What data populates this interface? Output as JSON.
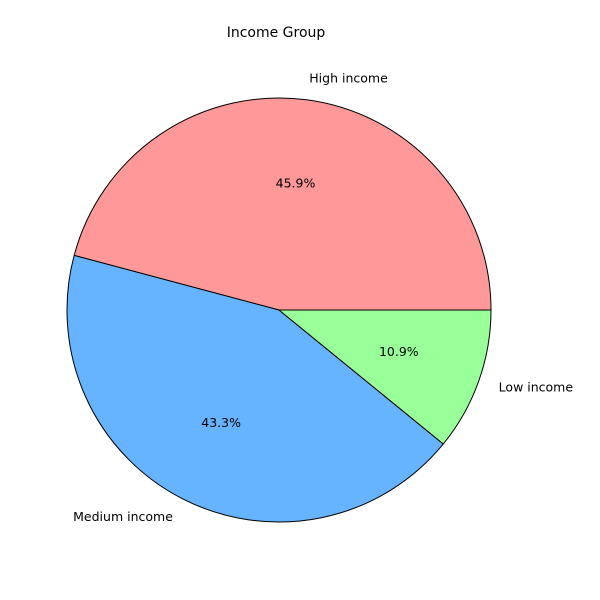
{
  "chart_data": {
    "type": "pie",
    "title": "Income Group",
    "categories": [
      "High income",
      "Medium income",
      "Low income"
    ],
    "values": [
      45.9,
      43.3,
      10.9
    ],
    "percent_labels": [
      "45.9%",
      "43.3%",
      "10.9%"
    ],
    "colors": [
      "#ff9999",
      "#66b3ff",
      "#99ff99"
    ],
    "edge_color": "#000000",
    "start_angle_deg": 0,
    "direction": "counterclockwise"
  }
}
